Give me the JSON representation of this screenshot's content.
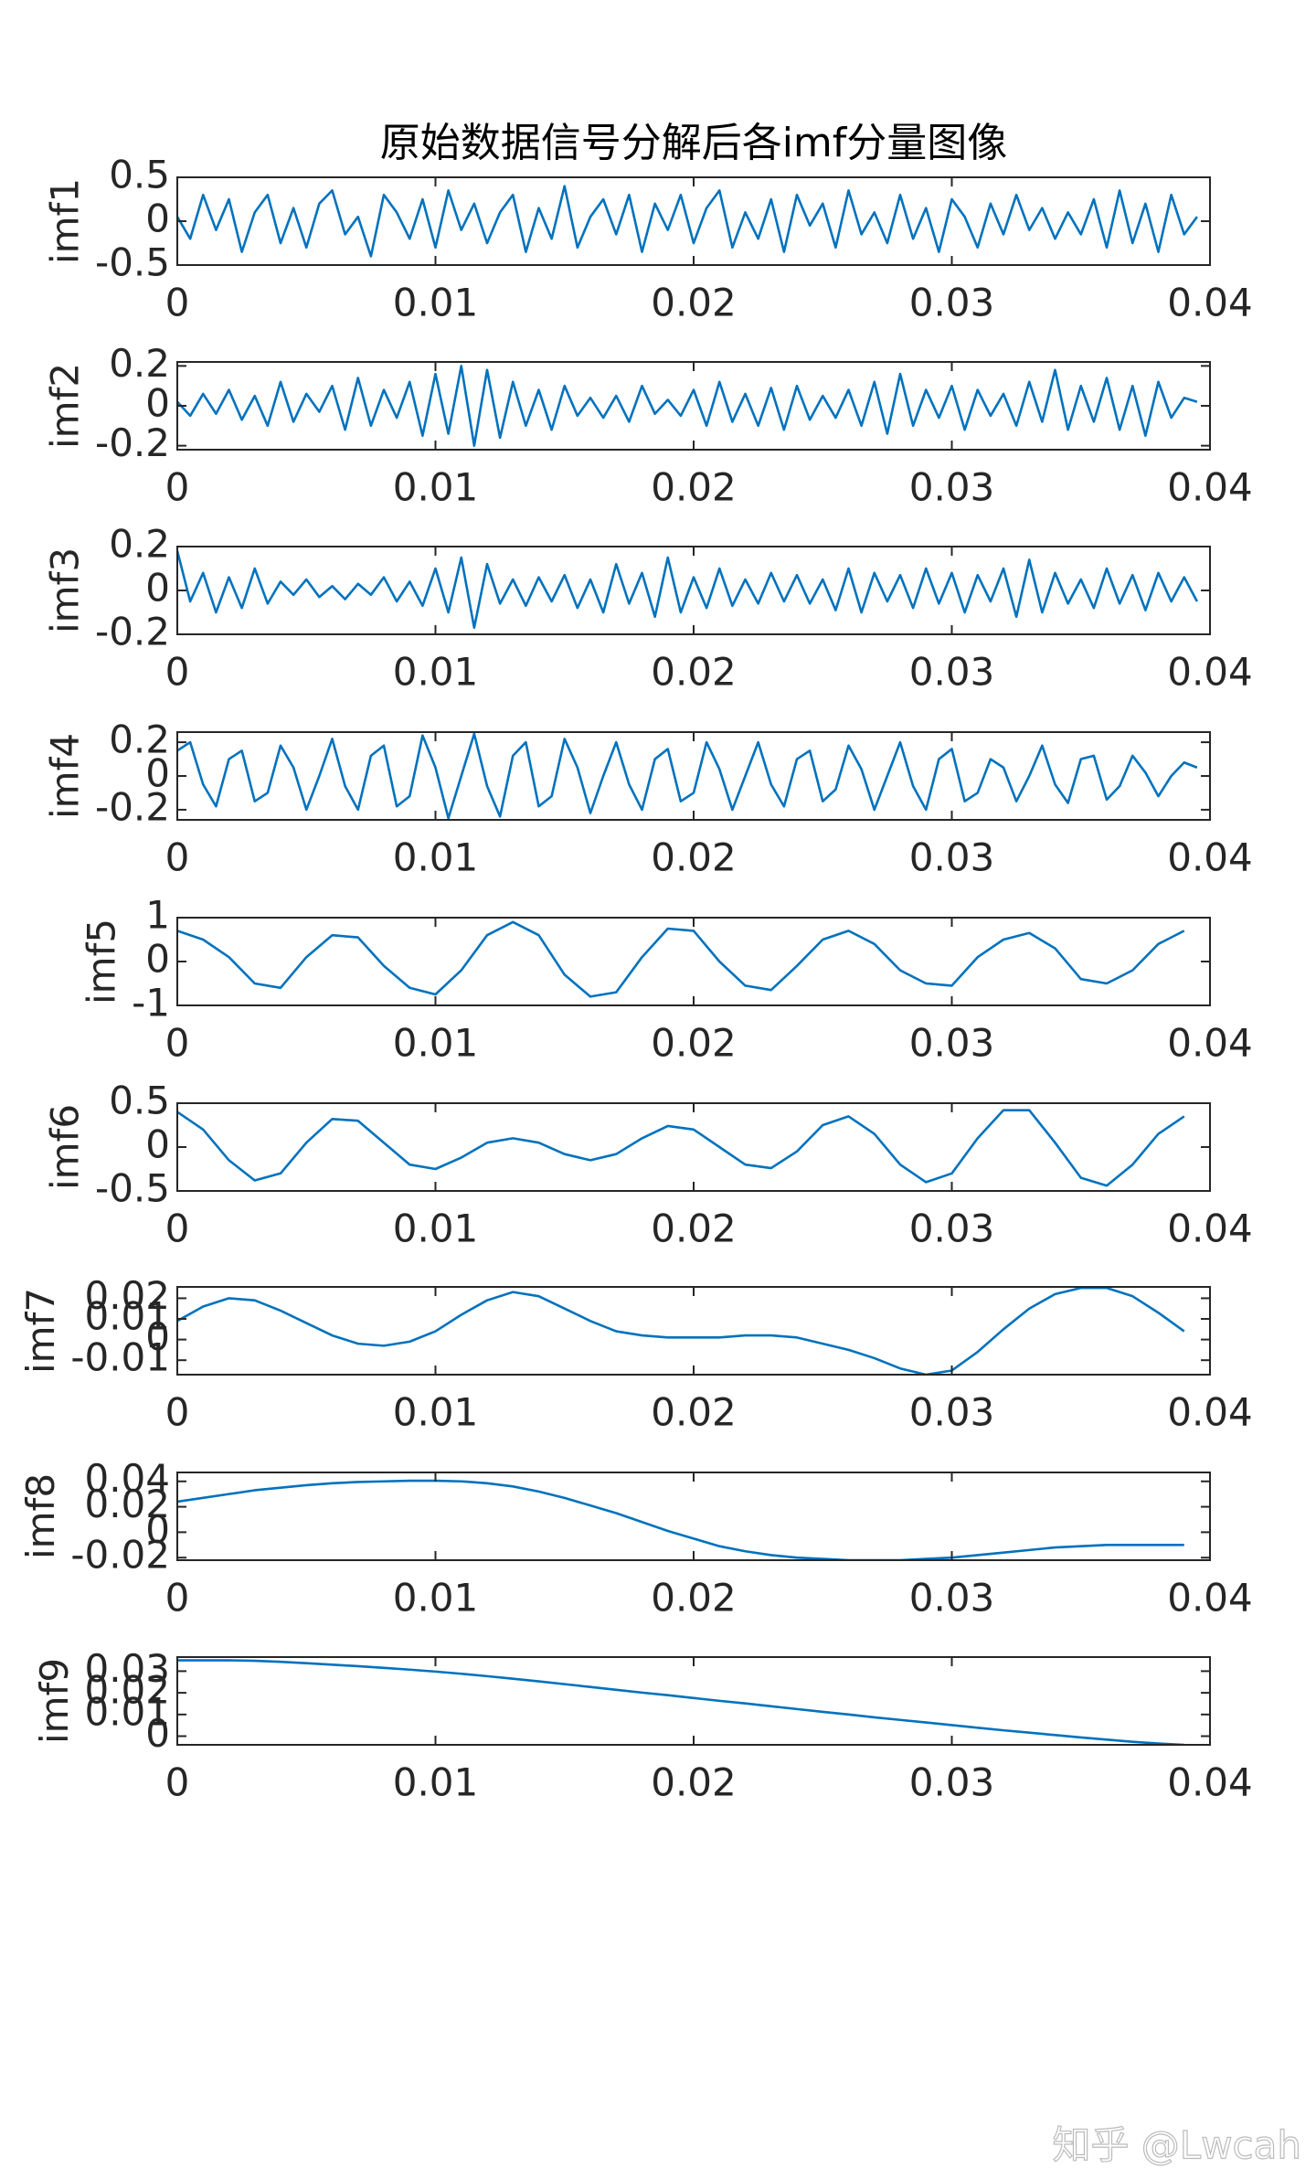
{
  "chart_data": [
    {
      "type": "line",
      "title": "原始数据信号分解后各imf分量图像",
      "ylabel": "imf1",
      "color": "#0072bd",
      "xlim": [
        0,
        0.04
      ],
      "xticks": [
        0,
        0.01,
        0.02,
        0.03,
        0.04
      ],
      "ylim": [
        -0.5,
        0.5
      ],
      "yticks": [
        -0.5,
        0,
        0.5
      ],
      "x": [
        0,
        0.0005,
        0.001,
        0.0015,
        0.002,
        0.0025,
        0.003,
        0.0035,
        0.004,
        0.0045,
        0.005,
        0.0055,
        0.006,
        0.0065,
        0.007,
        0.0075,
        0.008,
        0.0085,
        0.009,
        0.0095,
        0.01,
        0.0105,
        0.011,
        0.0115,
        0.012,
        0.0125,
        0.013,
        0.0135,
        0.014,
        0.0145,
        0.015,
        0.0155,
        0.016,
        0.0165,
        0.017,
        0.0175,
        0.018,
        0.0185,
        0.019,
        0.0195,
        0.02,
        0.0205,
        0.021,
        0.0215,
        0.022,
        0.0225,
        0.023,
        0.0235,
        0.024,
        0.0245,
        0.025,
        0.0255,
        0.026,
        0.0265,
        0.027,
        0.0275,
        0.028,
        0.0285,
        0.029,
        0.0295,
        0.03,
        0.0305,
        0.031,
        0.0315,
        0.032,
        0.0325,
        0.033,
        0.0335,
        0.034,
        0.0345,
        0.035,
        0.0355,
        0.036,
        0.0365,
        0.037,
        0.0375,
        0.038,
        0.0385,
        0.039,
        0.0395
      ],
      "values": [
        0.05,
        -0.2,
        0.3,
        -0.1,
        0.25,
        -0.35,
        0.1,
        0.3,
        -0.25,
        0.15,
        -0.3,
        0.2,
        0.35,
        -0.15,
        0.05,
        -0.4,
        0.3,
        0.1,
        -0.2,
        0.25,
        -0.3,
        0.35,
        -0.1,
        0.2,
        -0.25,
        0.1,
        0.3,
        -0.35,
        0.15,
        -0.2,
        0.4,
        -0.3,
        0.05,
        0.25,
        -0.15,
        0.3,
        -0.35,
        0.2,
        -0.1,
        0.3,
        -0.25,
        0.15,
        0.35,
        -0.3,
        0.1,
        -0.2,
        0.25,
        -0.35,
        0.3,
        -0.05,
        0.2,
        -0.3,
        0.35,
        -0.15,
        0.1,
        -0.25,
        0.3,
        -0.2,
        0.15,
        -0.35,
        0.25,
        0.05,
        -0.3,
        0.2,
        -0.15,
        0.3,
        -0.1,
        0.15,
        -0.2,
        0.1,
        -0.15,
        0.25,
        -0.3,
        0.35,
        -0.25,
        0.2,
        -0.35,
        0.3,
        -0.15,
        0.05
      ]
    },
    {
      "type": "line",
      "ylabel": "imf2",
      "color": "#0072bd",
      "xlim": [
        0,
        0.04
      ],
      "xticks": [
        0,
        0.01,
        0.02,
        0.03,
        0.04
      ],
      "ylim": [
        -0.22,
        0.22
      ],
      "yticks": [
        -0.2,
        0,
        0.2
      ],
      "x": [
        0,
        0.0005,
        0.001,
        0.0015,
        0.002,
        0.0025,
        0.003,
        0.0035,
        0.004,
        0.0045,
        0.005,
        0.0055,
        0.006,
        0.0065,
        0.007,
        0.0075,
        0.008,
        0.0085,
        0.009,
        0.0095,
        0.01,
        0.0105,
        0.011,
        0.0115,
        0.012,
        0.0125,
        0.013,
        0.0135,
        0.014,
        0.0145,
        0.015,
        0.0155,
        0.016,
        0.0165,
        0.017,
        0.0175,
        0.018,
        0.0185,
        0.019,
        0.0195,
        0.02,
        0.0205,
        0.021,
        0.0215,
        0.022,
        0.0225,
        0.023,
        0.0235,
        0.024,
        0.0245,
        0.025,
        0.0255,
        0.026,
        0.0265,
        0.027,
        0.0275,
        0.028,
        0.0285,
        0.029,
        0.0295,
        0.03,
        0.0305,
        0.031,
        0.0315,
        0.032,
        0.0325,
        0.033,
        0.0335,
        0.034,
        0.0345,
        0.035,
        0.0355,
        0.036,
        0.0365,
        0.037,
        0.0375,
        0.038,
        0.0385,
        0.039,
        0.0395
      ],
      "values": [
        0.02,
        -0.05,
        0.06,
        -0.04,
        0.08,
        -0.07,
        0.05,
        -0.1,
        0.12,
        -0.08,
        0.06,
        -0.03,
        0.1,
        -0.12,
        0.14,
        -0.1,
        0.08,
        -0.06,
        0.12,
        -0.15,
        0.16,
        -0.14,
        0.2,
        -0.2,
        0.18,
        -0.16,
        0.12,
        -0.1,
        0.08,
        -0.12,
        0.1,
        -0.05,
        0.04,
        -0.06,
        0.05,
        -0.08,
        0.1,
        -0.04,
        0.03,
        -0.05,
        0.08,
        -0.1,
        0.12,
        -0.08,
        0.06,
        -0.1,
        0.09,
        -0.12,
        0.1,
        -0.07,
        0.05,
        -0.06,
        0.08,
        -0.1,
        0.12,
        -0.14,
        0.16,
        -0.1,
        0.08,
        -0.06,
        0.1,
        -0.12,
        0.08,
        -0.05,
        0.06,
        -0.1,
        0.12,
        -0.08,
        0.18,
        -0.12,
        0.1,
        -0.08,
        0.14,
        -0.12,
        0.1,
        -0.15,
        0.12,
        -0.06,
        0.04,
        0.02
      ]
    },
    {
      "type": "line",
      "ylabel": "imf3",
      "color": "#0072bd",
      "xlim": [
        0,
        0.04
      ],
      "xticks": [
        0,
        0.01,
        0.02,
        0.03,
        0.04
      ],
      "ylim": [
        -0.2,
        0.2
      ],
      "yticks": [
        -0.2,
        0,
        0.2
      ],
      "x": [
        0,
        0.0005,
        0.001,
        0.0015,
        0.002,
        0.0025,
        0.003,
        0.0035,
        0.004,
        0.0045,
        0.005,
        0.0055,
        0.006,
        0.0065,
        0.007,
        0.0075,
        0.008,
        0.0085,
        0.009,
        0.0095,
        0.01,
        0.0105,
        0.011,
        0.0115,
        0.012,
        0.0125,
        0.013,
        0.0135,
        0.014,
        0.0145,
        0.015,
        0.0155,
        0.016,
        0.0165,
        0.017,
        0.0175,
        0.018,
        0.0185,
        0.019,
        0.0195,
        0.02,
        0.0205,
        0.021,
        0.0215,
        0.022,
        0.0225,
        0.023,
        0.0235,
        0.024,
        0.0245,
        0.025,
        0.0255,
        0.026,
        0.0265,
        0.027,
        0.0275,
        0.028,
        0.0285,
        0.029,
        0.0295,
        0.03,
        0.0305,
        0.031,
        0.0315,
        0.032,
        0.0325,
        0.033,
        0.0335,
        0.034,
        0.0345,
        0.035,
        0.0355,
        0.036,
        0.0365,
        0.037,
        0.0375,
        0.038,
        0.0385,
        0.039,
        0.0395
      ],
      "values": [
        0.18,
        -0.05,
        0.08,
        -0.1,
        0.06,
        -0.08,
        0.1,
        -0.06,
        0.04,
        -0.02,
        0.05,
        -0.03,
        0.02,
        -0.04,
        0.03,
        -0.02,
        0.06,
        -0.05,
        0.04,
        -0.07,
        0.1,
        -0.1,
        0.15,
        -0.17,
        0.12,
        -0.06,
        0.05,
        -0.07,
        0.06,
        -0.05,
        0.07,
        -0.08,
        0.05,
        -0.1,
        0.12,
        -0.06,
        0.08,
        -0.12,
        0.15,
        -0.1,
        0.06,
        -0.08,
        0.1,
        -0.07,
        0.05,
        -0.06,
        0.08,
        -0.05,
        0.07,
        -0.06,
        0.05,
        -0.09,
        0.1,
        -0.1,
        0.08,
        -0.05,
        0.07,
        -0.08,
        0.1,
        -0.06,
        0.08,
        -0.1,
        0.07,
        -0.05,
        0.1,
        -0.12,
        0.14,
        -0.1,
        0.08,
        -0.06,
        0.05,
        -0.08,
        0.1,
        -0.06,
        0.07,
        -0.09,
        0.08,
        -0.05,
        0.06,
        -0.05
      ]
    },
    {
      "type": "line",
      "ylabel": "imf4",
      "color": "#0072bd",
      "xlim": [
        0,
        0.04
      ],
      "xticks": [
        0,
        0.01,
        0.02,
        0.03,
        0.04
      ],
      "ylim": [
        -0.26,
        0.26
      ],
      "yticks": [
        -0.2,
        0,
        0.2
      ],
      "x": [
        0,
        0.0005,
        0.001,
        0.0015,
        0.002,
        0.0025,
        0.003,
        0.0035,
        0.004,
        0.0045,
        0.005,
        0.0055,
        0.006,
        0.0065,
        0.007,
        0.0075,
        0.008,
        0.0085,
        0.009,
        0.0095,
        0.01,
        0.0105,
        0.011,
        0.0115,
        0.012,
        0.0125,
        0.013,
        0.0135,
        0.014,
        0.0145,
        0.015,
        0.0155,
        0.016,
        0.0165,
        0.017,
        0.0175,
        0.018,
        0.0185,
        0.019,
        0.0195,
        0.02,
        0.0205,
        0.021,
        0.0215,
        0.022,
        0.0225,
        0.023,
        0.0235,
        0.024,
        0.0245,
        0.025,
        0.0255,
        0.026,
        0.0265,
        0.027,
        0.0275,
        0.028,
        0.0285,
        0.029,
        0.0295,
        0.03,
        0.0305,
        0.031,
        0.0315,
        0.032,
        0.0325,
        0.033,
        0.0335,
        0.034,
        0.0345,
        0.035,
        0.0355,
        0.036,
        0.0365,
        0.037,
        0.0375,
        0.038,
        0.0385,
        0.039,
        0.0395
      ],
      "values": [
        0.15,
        0.2,
        -0.05,
        -0.18,
        0.1,
        0.15,
        -0.15,
        -0.1,
        0.18,
        0.05,
        -0.2,
        0,
        0.22,
        -0.06,
        -0.2,
        0.12,
        0.18,
        -0.18,
        -0.12,
        0.24,
        0.05,
        -0.25,
        0,
        0.25,
        -0.06,
        -0.24,
        0.12,
        0.2,
        -0.18,
        -0.12,
        0.22,
        0.05,
        -0.22,
        0,
        0.2,
        -0.05,
        -0.2,
        0.1,
        0.16,
        -0.15,
        -0.1,
        0.2,
        0.04,
        -0.2,
        0,
        0.2,
        -0.05,
        -0.18,
        0.1,
        0.15,
        -0.15,
        -0.08,
        0.18,
        0.04,
        -0.2,
        0,
        0.2,
        -0.06,
        -0.2,
        0.1,
        0.16,
        -0.15,
        -0.1,
        0.1,
        0.05,
        -0.15,
        0,
        0.18,
        -0.05,
        -0.16,
        0.1,
        0.12,
        -0.14,
        -0.06,
        0.12,
        0.02,
        -0.12,
        0,
        0.08,
        0.05
      ]
    },
    {
      "type": "line",
      "ylabel": "imf5",
      "color": "#0072bd",
      "xlim": [
        0,
        0.04
      ],
      "xticks": [
        0,
        0.01,
        0.02,
        0.03,
        0.04
      ],
      "ylim": [
        -1,
        1
      ],
      "yticks": [
        -1,
        0,
        1
      ],
      "x": [
        0,
        0.001,
        0.002,
        0.003,
        0.004,
        0.005,
        0.006,
        0.007,
        0.008,
        0.009,
        0.01,
        0.011,
        0.012,
        0.013,
        0.014,
        0.015,
        0.016,
        0.017,
        0.018,
        0.019,
        0.02,
        0.021,
        0.022,
        0.023,
        0.024,
        0.025,
        0.026,
        0.027,
        0.028,
        0.029,
        0.03,
        0.031,
        0.032,
        0.033,
        0.034,
        0.035,
        0.036,
        0.037,
        0.038,
        0.039
      ],
      "values": [
        0.7,
        0.5,
        0.1,
        -0.5,
        -0.6,
        0.1,
        0.6,
        0.55,
        -0.1,
        -0.6,
        -0.75,
        -0.2,
        0.6,
        0.9,
        0.6,
        -0.3,
        -0.8,
        -0.7,
        0.1,
        0.75,
        0.7,
        0,
        -0.55,
        -0.65,
        -0.1,
        0.5,
        0.7,
        0.4,
        -0.2,
        -0.5,
        -0.55,
        0.1,
        0.5,
        0.65,
        0.3,
        -0.4,
        -0.5,
        -0.2,
        0.4,
        0.7
      ]
    },
    {
      "type": "line",
      "ylabel": "imf6",
      "color": "#0072bd",
      "xlim": [
        0,
        0.04
      ],
      "xticks": [
        0,
        0.01,
        0.02,
        0.03,
        0.04
      ],
      "ylim": [
        -0.5,
        0.5
      ],
      "yticks": [
        -0.5,
        0,
        0.5
      ],
      "x": [
        0,
        0.001,
        0.002,
        0.003,
        0.004,
        0.005,
        0.006,
        0.007,
        0.008,
        0.009,
        0.01,
        0.011,
        0.012,
        0.013,
        0.014,
        0.015,
        0.016,
        0.017,
        0.018,
        0.019,
        0.02,
        0.021,
        0.022,
        0.023,
        0.024,
        0.025,
        0.026,
        0.027,
        0.028,
        0.029,
        0.03,
        0.031,
        0.032,
        0.033,
        0.034,
        0.035,
        0.036,
        0.037,
        0.038,
        0.039
      ],
      "values": [
        0.4,
        0.2,
        -0.15,
        -0.38,
        -0.3,
        0.05,
        0.32,
        0.3,
        0.05,
        -0.2,
        -0.25,
        -0.12,
        0.05,
        0.1,
        0.05,
        -0.08,
        -0.15,
        -0.08,
        0.1,
        0.24,
        0.2,
        0,
        -0.2,
        -0.24,
        -0.05,
        0.25,
        0.35,
        0.15,
        -0.2,
        -0.4,
        -0.3,
        0.1,
        0.42,
        0.42,
        0.05,
        -0.35,
        -0.44,
        -0.2,
        0.15,
        0.35
      ]
    },
    {
      "type": "line",
      "ylabel": "imf7",
      "color": "#0072bd",
      "xlim": [
        0,
        0.04
      ],
      "xticks": [
        0,
        0.01,
        0.02,
        0.03,
        0.04
      ],
      "ylim": [
        -0.017,
        0.0255
      ],
      "yticks": [
        -0.01,
        0,
        0.01,
        0.02
      ],
      "x": [
        0,
        0.001,
        0.002,
        0.003,
        0.004,
        0.005,
        0.006,
        0.007,
        0.008,
        0.009,
        0.01,
        0.011,
        0.012,
        0.013,
        0.014,
        0.015,
        0.016,
        0.017,
        0.018,
        0.019,
        0.02,
        0.021,
        0.022,
        0.023,
        0.024,
        0.025,
        0.026,
        0.027,
        0.028,
        0.029,
        0.03,
        0.031,
        0.032,
        0.033,
        0.034,
        0.035,
        0.036,
        0.037,
        0.038,
        0.039
      ],
      "values": [
        0.009,
        0.016,
        0.02,
        0.019,
        0.014,
        0.008,
        0.002,
        -0.002,
        -0.003,
        -0.001,
        0.004,
        0.012,
        0.019,
        0.023,
        0.021,
        0.015,
        0.009,
        0.004,
        0.002,
        0.001,
        0.001,
        0.001,
        0.002,
        0.002,
        0.001,
        -0.002,
        -0.005,
        -0.009,
        -0.014,
        -0.017,
        -0.015,
        -0.006,
        0.005,
        0.015,
        0.022,
        0.025,
        0.025,
        0.021,
        0.013,
        0.004
      ]
    },
    {
      "type": "line",
      "ylabel": "imf8",
      "color": "#0072bd",
      "xlim": [
        0,
        0.04
      ],
      "xticks": [
        0,
        0.01,
        0.02,
        0.03,
        0.04
      ],
      "ylim": [
        -0.022,
        0.047
      ],
      "yticks": [
        -0.02,
        0,
        0.02,
        0.04
      ],
      "x": [
        0,
        0.001,
        0.002,
        0.003,
        0.004,
        0.005,
        0.006,
        0.007,
        0.008,
        0.009,
        0.01,
        0.011,
        0.012,
        0.013,
        0.014,
        0.015,
        0.016,
        0.017,
        0.018,
        0.019,
        0.02,
        0.021,
        0.022,
        0.023,
        0.024,
        0.025,
        0.026,
        0.027,
        0.028,
        0.029,
        0.03,
        0.031,
        0.032,
        0.033,
        0.034,
        0.035,
        0.036,
        0.037,
        0.038,
        0.039
      ],
      "values": [
        0.024,
        0.027,
        0.03,
        0.033,
        0.035,
        0.037,
        0.0385,
        0.0395,
        0.04,
        0.0405,
        0.0405,
        0.04,
        0.0385,
        0.036,
        0.032,
        0.027,
        0.021,
        0.015,
        0.008,
        0.001,
        -0.005,
        -0.011,
        -0.015,
        -0.018,
        -0.02,
        -0.021,
        -0.022,
        -0.022,
        -0.022,
        -0.021,
        -0.02,
        -0.018,
        -0.016,
        -0.014,
        -0.012,
        -0.011,
        -0.01,
        -0.01,
        -0.01,
        -0.01
      ]
    },
    {
      "type": "line",
      "ylabel": "imf9",
      "color": "#0072bd",
      "xlim": [
        0,
        0.04
      ],
      "xticks": [
        0,
        0.01,
        0.02,
        0.03,
        0.04
      ],
      "ylim": [
        -0.004,
        0.0365
      ],
      "yticks": [
        0,
        0.01,
        0.02,
        0.03
      ],
      "x": [
        0,
        0.001,
        0.002,
        0.003,
        0.004,
        0.005,
        0.006,
        0.007,
        0.008,
        0.009,
        0.01,
        0.011,
        0.012,
        0.013,
        0.014,
        0.015,
        0.016,
        0.017,
        0.018,
        0.019,
        0.02,
        0.021,
        0.022,
        0.023,
        0.024,
        0.025,
        0.026,
        0.027,
        0.028,
        0.029,
        0.03,
        0.031,
        0.032,
        0.033,
        0.034,
        0.035,
        0.036,
        0.037,
        0.038,
        0.039
      ],
      "values": [
        0.035,
        0.035,
        0.035,
        0.0348,
        0.0343,
        0.0337,
        0.033,
        0.0323,
        0.0315,
        0.0307,
        0.0298,
        0.0288,
        0.0277,
        0.0265,
        0.0253,
        0.024,
        0.0227,
        0.0214,
        0.0201,
        0.0189,
        0.0176,
        0.0163,
        0.0151,
        0.0138,
        0.0125,
        0.0112,
        0.01,
        0.0087,
        0.0075,
        0.0063,
        0.0051,
        0.0039,
        0.0027,
        0.0016,
        0.0005,
        -0.0006,
        -0.0016,
        -0.0026,
        -0.0034,
        -0.004
      ]
    }
  ],
  "watermark": "知乎 @Lwcah"
}
